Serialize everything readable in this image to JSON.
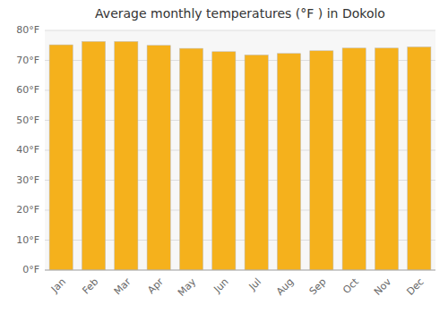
{
  "chart_data": {
    "type": "bar",
    "title": "Average monthly temperatures (°F ) in Dokolo",
    "categories": [
      "Jan",
      "Feb",
      "Mar",
      "Apr",
      "May",
      "Jun",
      "Jul",
      "Aug",
      "Sep",
      "Oct",
      "Nov",
      "Dec"
    ],
    "values": [
      75.2,
      76.3,
      76.3,
      75.0,
      74.0,
      72.9,
      71.8,
      72.3,
      73.2,
      74.1,
      74.1,
      74.5
    ],
    "color": "#F5B11C",
    "ylim": [
      0,
      80
    ],
    "yticks": [
      {
        "value": 0,
        "label": "0°F"
      },
      {
        "value": 10,
        "label": "10°F"
      },
      {
        "value": 20,
        "label": "20°F"
      },
      {
        "value": 30,
        "label": "30°F"
      },
      {
        "value": 40,
        "label": "40°F"
      },
      {
        "value": 50,
        "label": "50°F"
      },
      {
        "value": 60,
        "label": "60°F"
      },
      {
        "value": 70,
        "label": "70°F"
      },
      {
        "value": 80,
        "label": "80°F"
      }
    ],
    "grid": true
  }
}
